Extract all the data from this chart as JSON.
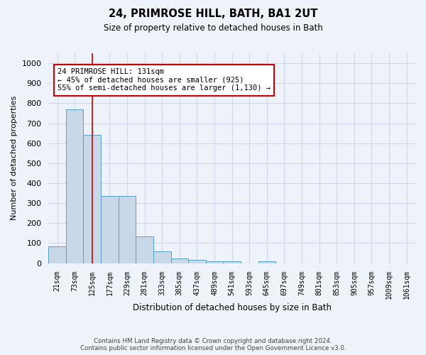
{
  "title": "24, PRIMROSE HILL, BATH, BA1 2UT",
  "subtitle": "Size of property relative to detached houses in Bath",
  "xlabel": "Distribution of detached houses by size in Bath",
  "ylabel": "Number of detached properties",
  "categories": [
    "21sqm",
    "73sqm",
    "125sqm",
    "177sqm",
    "229sqm",
    "281sqm",
    "333sqm",
    "385sqm",
    "437sqm",
    "489sqm",
    "541sqm",
    "593sqm",
    "645sqm",
    "697sqm",
    "749sqm",
    "801sqm",
    "853sqm",
    "905sqm",
    "957sqm",
    "1009sqm",
    "1061sqm"
  ],
  "bar_heights": [
    83,
    770,
    640,
    335,
    335,
    135,
    60,
    25,
    17,
    10,
    10,
    0,
    10,
    0,
    0,
    0,
    0,
    0,
    0,
    0,
    0
  ],
  "bar_color": "#c8d8e8",
  "bar_edge_color": "#5a9fc8",
  "grid_color": "#d0d8e8",
  "background_color": "#eef2f9",
  "red_line_x": 2.0,
  "annotation_text": "24 PRIMROSE HILL: 131sqm\n← 45% of detached houses are smaller (925)\n55% of semi-detached houses are larger (1,130) →",
  "annotation_box_color": "#ffffff",
  "annotation_border_color": "#cc0000",
  "ylim": [
    0,
    1050
  ],
  "yticks": [
    0,
    100,
    200,
    300,
    400,
    500,
    600,
    700,
    800,
    900,
    1000
  ],
  "footer_line1": "Contains HM Land Registry data © Crown copyright and database right 2024.",
  "footer_line2": "Contains public sector information licensed under the Open Government Licence v3.0."
}
